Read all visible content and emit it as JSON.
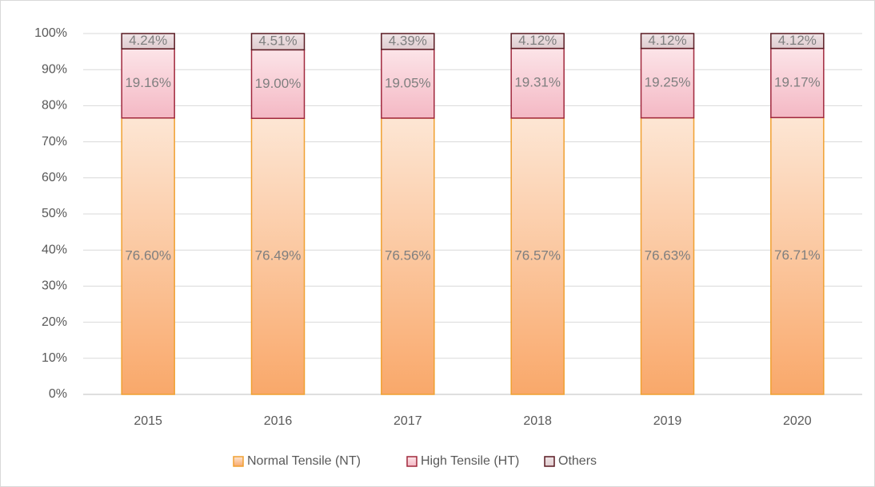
{
  "chart_data": {
    "type": "stacked_bar",
    "categories": [
      "2015",
      "2016",
      "2017",
      "2018",
      "2019",
      "2020"
    ],
    "series": [
      {
        "name": "Normal Tensile (NT)",
        "color": "#f9a86a",
        "values": [
          76.6,
          76.49,
          76.56,
          76.57,
          76.63,
          76.71
        ],
        "value_labels": [
          "76.60%",
          "76.49%",
          "76.56%",
          "76.57%",
          "76.63%",
          "76.71%"
        ]
      },
      {
        "name": "High Tensile (HT)",
        "color": "#f4b8c4",
        "values": [
          19.16,
          19.0,
          19.05,
          19.31,
          19.25,
          19.17
        ],
        "value_labels": [
          "19.16%",
          "19.00%",
          "19.05%",
          "19.31%",
          "19.25%",
          "19.17%"
        ]
      },
      {
        "name": "Others",
        "color": "#e0cdd0",
        "values": [
          4.24,
          4.51,
          4.39,
          4.12,
          4.12,
          4.12
        ],
        "value_labels": [
          "4.24%",
          "4.51%",
          "4.39%",
          "4.12%",
          "4.12%",
          "4.12%"
        ]
      }
    ],
    "ylim": [
      0,
      100
    ],
    "yticks": [
      {
        "value": 0,
        "label": "0%"
      },
      {
        "value": 10,
        "label": "10%"
      },
      {
        "value": 20,
        "label": "20%"
      },
      {
        "value": 30,
        "label": "30%"
      },
      {
        "value": 40,
        "label": "40%"
      },
      {
        "value": 50,
        "label": "50%"
      },
      {
        "value": 60,
        "label": "60%"
      },
      {
        "value": 70,
        "label": "70%"
      },
      {
        "value": 80,
        "label": "80%"
      },
      {
        "value": 90,
        "label": "90%"
      },
      {
        "value": 100,
        "label": "100%"
      }
    ],
    "grid": true,
    "legend": "bottom"
  }
}
